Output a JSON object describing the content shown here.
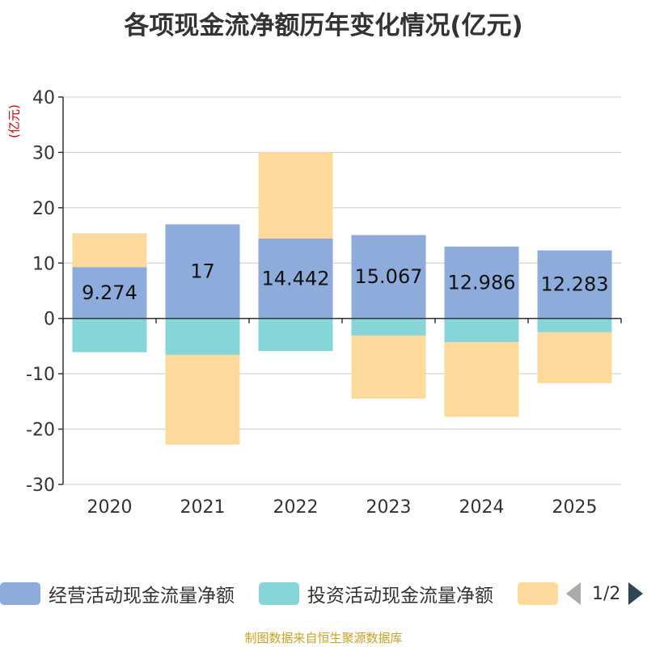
{
  "chart_data": {
    "type": "bar",
    "stacked": true,
    "title": "各项现金流净额历年变化情况(亿元)",
    "ylabel": "(亿元)",
    "xlabel": "",
    "ylim": [
      -30,
      40
    ],
    "yticks": [
      40,
      30,
      20,
      10,
      0,
      -10,
      -20,
      -30
    ],
    "categories": [
      "2020",
      "2021",
      "2022",
      "2023",
      "2024",
      "2025"
    ],
    "series": [
      {
        "name": "经营活动现金流量净额",
        "color": "#8eacdb",
        "values": [
          9.274,
          17,
          14.442,
          15.067,
          12.986,
          12.283
        ],
        "labels": [
          "9.274",
          "17",
          "14.442",
          "15.067",
          "12.986",
          "12.283"
        ]
      },
      {
        "name": "投资活动现金流量净额",
        "color": "#86d5d8",
        "values": [
          -6.1,
          -6.6,
          -5.9,
          -3.1,
          -4.3,
          -2.5
        ]
      },
      {
        "name": "",
        "color": "#fdd99b",
        "values": [
          6.1,
          -16.2,
          15.6,
          -11.4,
          -13.5,
          -9.2
        ]
      }
    ],
    "grid": true,
    "legend_position": "bottom"
  },
  "legend": {
    "page_indicator": "1/2"
  },
  "footer": {
    "source": "制图数据来自恒生聚源数据库"
  }
}
